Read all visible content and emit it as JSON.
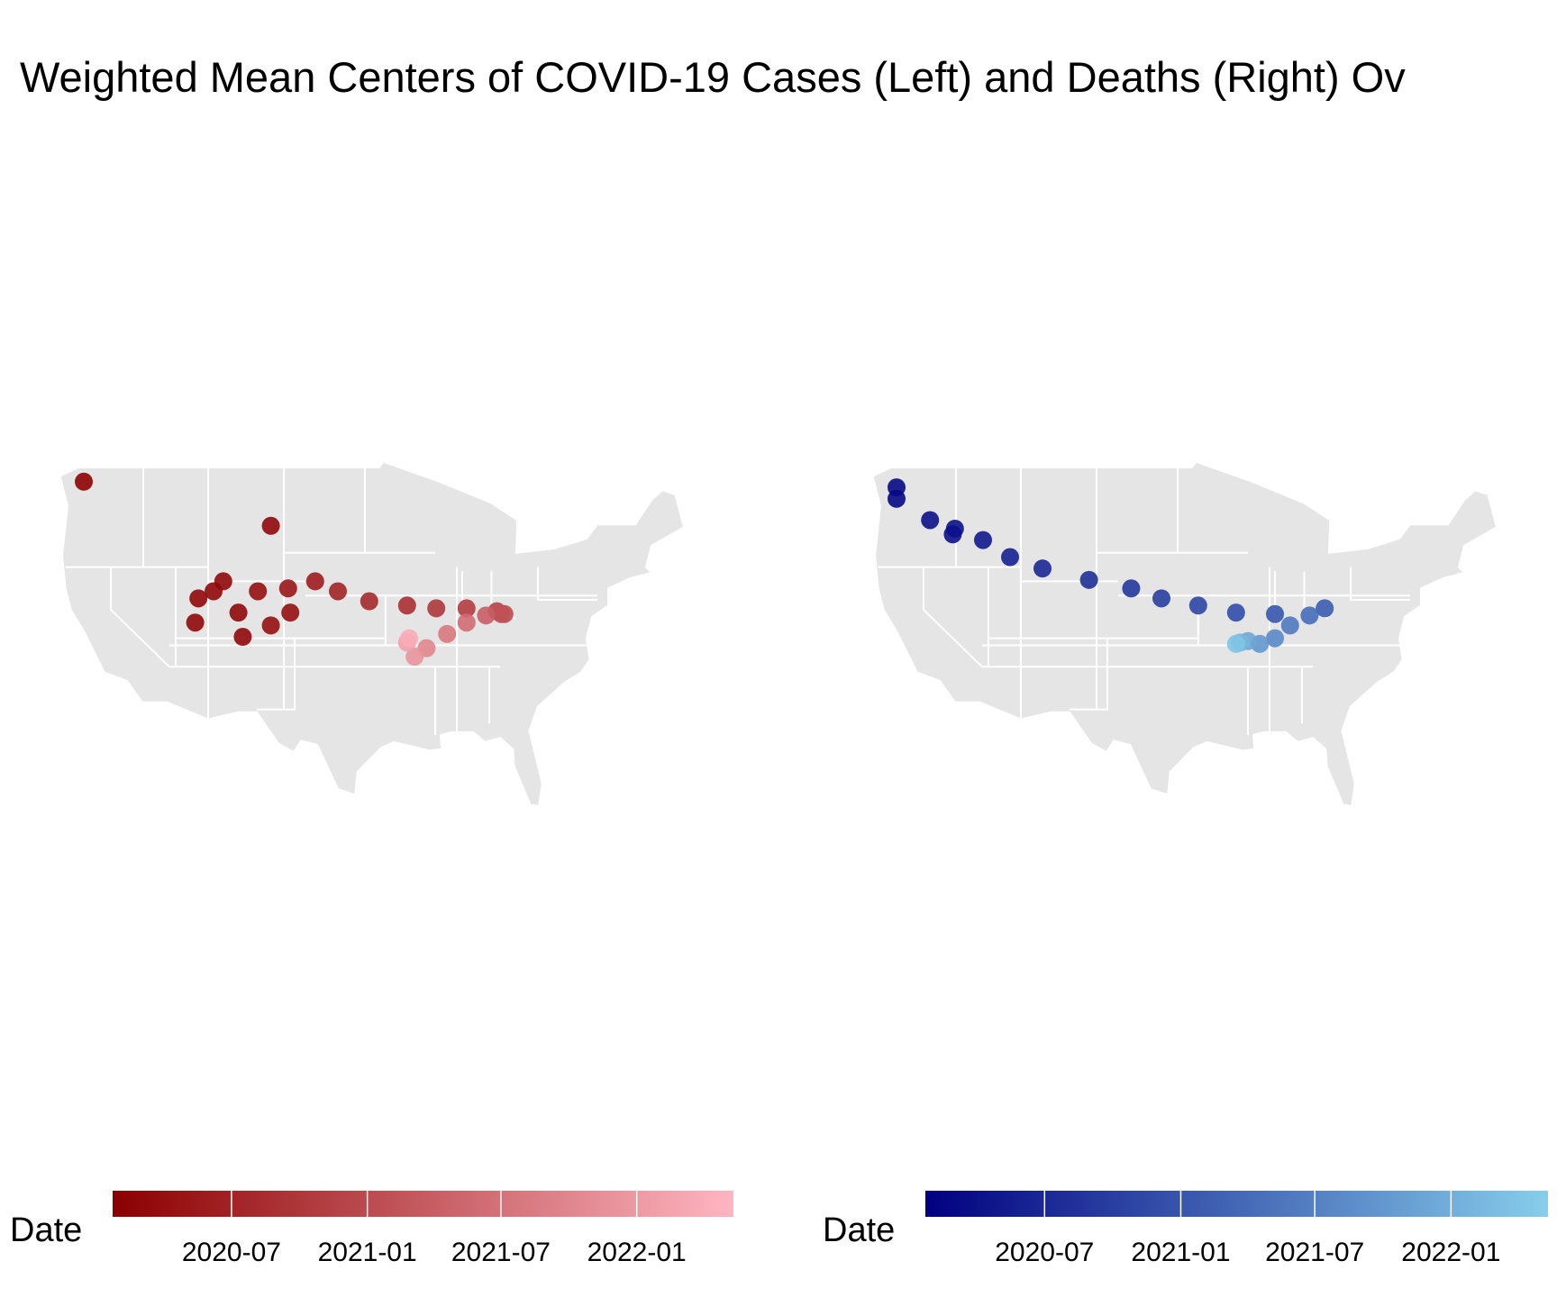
{
  "title": "Weighted Mean Centers of COVID-19 Cases (Left) and Deaths (Right) Ov",
  "chart_data": [
    {
      "type": "scatter",
      "x": [
        -122.5,
        -105.2,
        -112.2,
        -111.9,
        -109.6,
        -110.5,
        -108.2,
        -107.8,
        -105.2,
        -103.4,
        -106.4,
        -103.6,
        -101.1,
        -99.0,
        -96.1,
        -92.6,
        -89.9,
        -87.1,
        -84.3,
        -83.6,
        -83.9,
        -85.3,
        -87.1,
        -88.9,
        -90.8,
        -91.9,
        -92.6,
        -92.4
      ],
      "values": [
        48.0,
        44.9,
        38.1,
        39.8,
        41.0,
        40.3,
        38.8,
        37.1,
        37.9,
        38.8,
        40.3,
        40.5,
        41.0,
        40.3,
        39.6,
        39.3,
        39.1,
        39.1,
        38.9,
        38.7,
        38.7,
        38.6,
        38.1,
        37.3,
        36.3,
        35.7,
        36.7,
        37.0
      ],
      "dates": [
        "2020-02",
        "2020-03",
        "2020-03",
        "2020-03",
        "2020-03",
        "2020-03",
        "2020-03",
        "2020-03",
        "2020-04",
        "2020-04",
        "2020-04",
        "2020-05",
        "2020-06",
        "2020-07",
        "2020-08",
        "2020-09",
        "2020-10",
        "2020-11",
        "2020-12",
        "2021-01",
        "2021-02",
        "2021-04",
        "2021-06",
        "2021-08",
        "2021-10",
        "2021-12",
        "2022-02",
        "2022-04"
      ],
      "colorscale": {
        "low": "#8b0000",
        "high": "#ffb6c1"
      },
      "colorlim": [
        "2020-01-22",
        "2022-05-12"
      ],
      "colorticks": [
        "2020-07",
        "2021-01",
        "2021-07",
        "2022-01"
      ],
      "legend_title": "Date"
    },
    {
      "type": "scatter",
      "x": [
        -122.5,
        -122.5,
        -119.4,
        -117.1,
        -117.3,
        -114.5,
        -112.0,
        -109.0,
        -104.7,
        -100.8,
        -98.0,
        -94.6,
        -91.1,
        -87.5,
        -82.9,
        -84.3,
        -86.1,
        -87.5,
        -88.9,
        -90.0,
        -90.7,
        -91.1
      ],
      "values": [
        47.6,
        46.8,
        45.3,
        44.7,
        44.3,
        43.9,
        42.7,
        41.9,
        41.1,
        40.5,
        39.8,
        39.3,
        38.8,
        38.7,
        39.1,
        38.6,
        37.9,
        37.0,
        36.6,
        36.8,
        36.7,
        36.6
      ],
      "dates": [
        "2020-03",
        "2020-03",
        "2020-04",
        "2020-04",
        "2020-04",
        "2020-05",
        "2020-06",
        "2020-07",
        "2020-08",
        "2020-09",
        "2020-10",
        "2020-11",
        "2020-12",
        "2021-01",
        "2021-02",
        "2021-04",
        "2021-06",
        "2021-08",
        "2021-10",
        "2021-12",
        "2022-02",
        "2022-04"
      ],
      "colorscale": {
        "low": "#000080",
        "high": "#87ceeb"
      },
      "colorlim": [
        "2020-01-22",
        "2022-05-12"
      ],
      "colorticks": [
        "2020-07",
        "2021-01",
        "2021-07",
        "2022-01"
      ],
      "legend_title": "Date"
    }
  ]
}
